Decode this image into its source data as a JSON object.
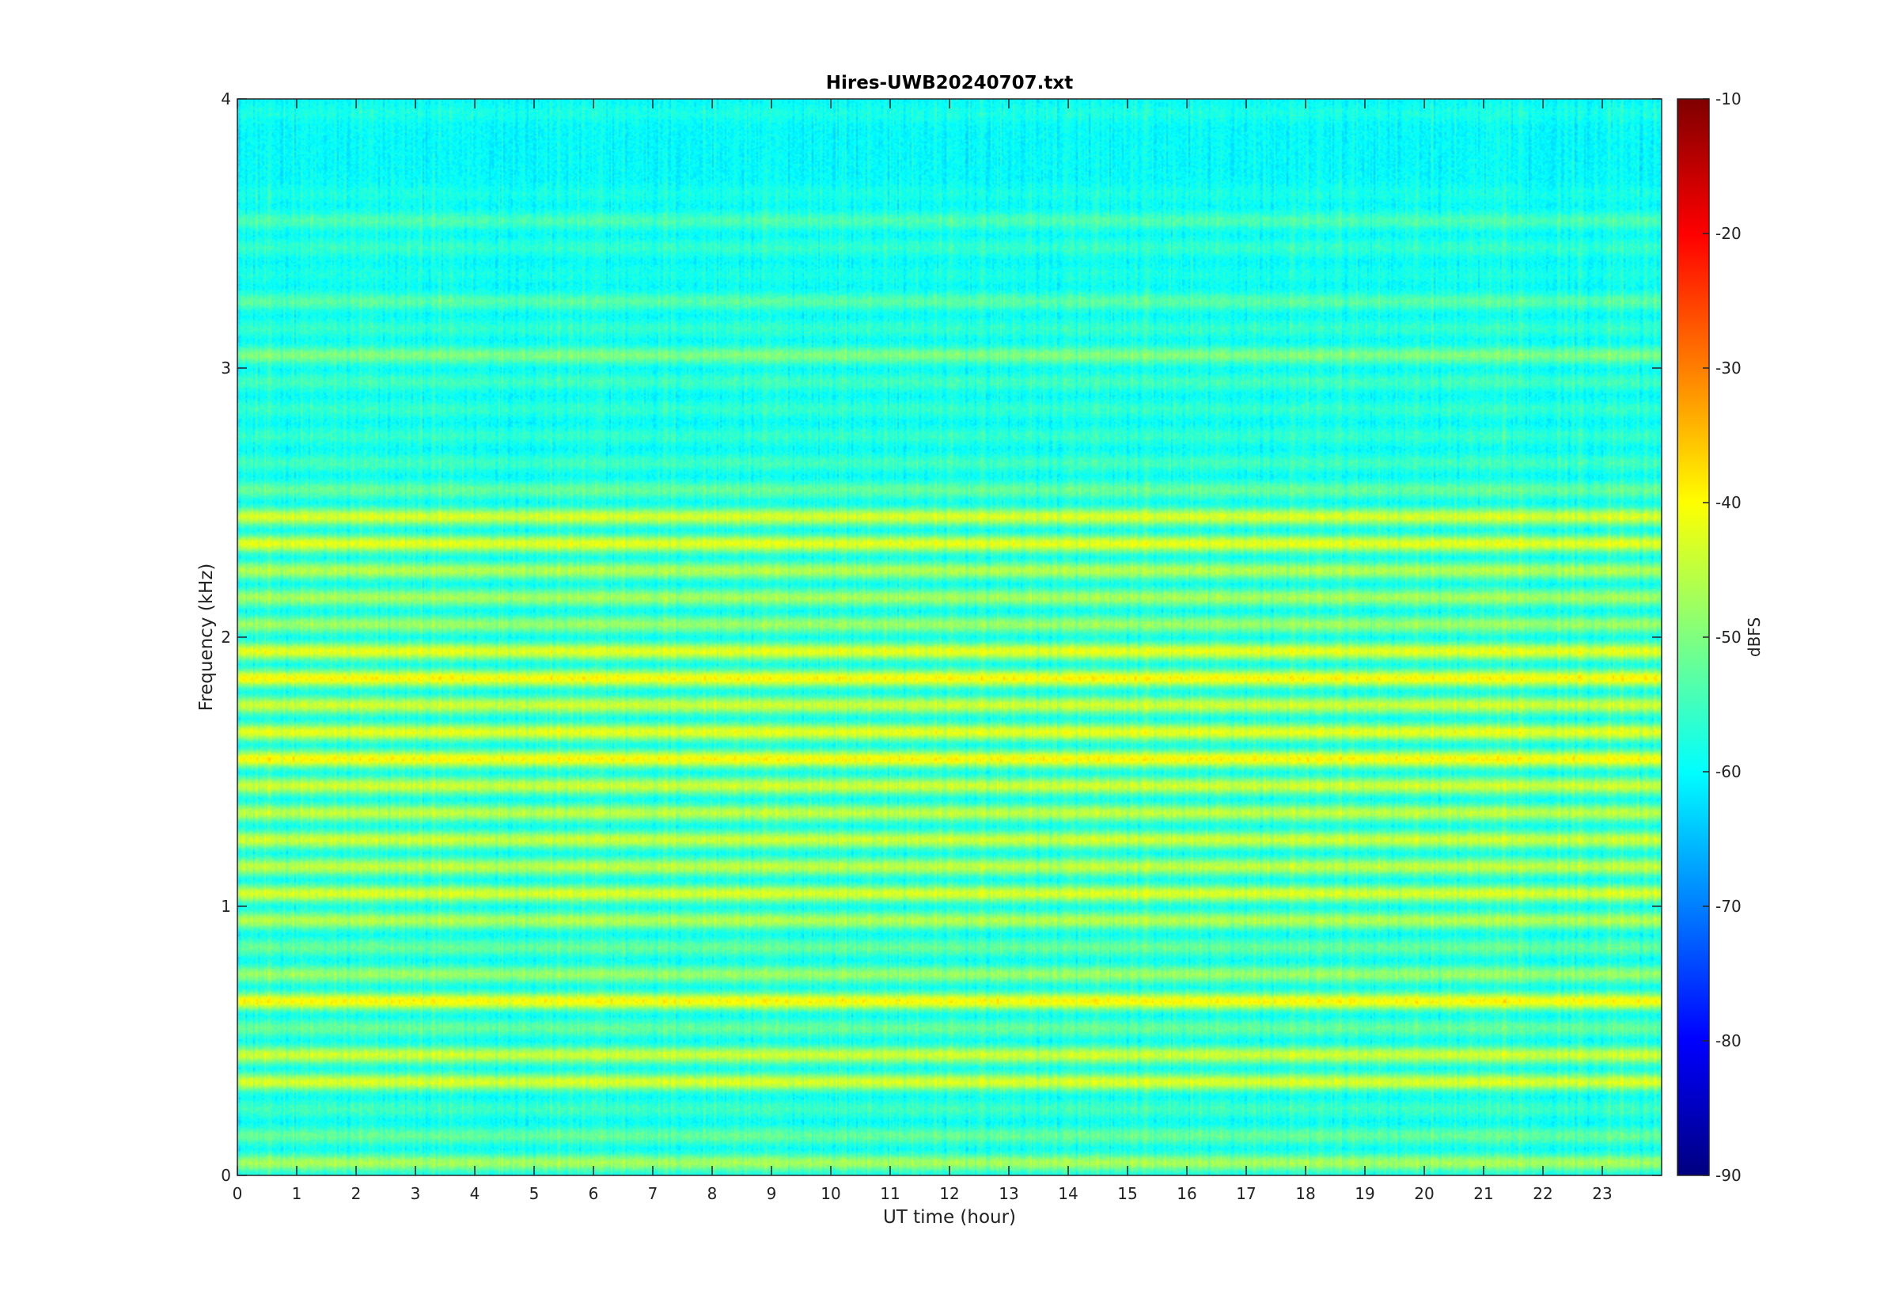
{
  "chart_data": {
    "type": "heatmap",
    "title": "Hires-UWB20240707.txt",
    "xlabel": "UT time (hour)",
    "ylabel": "Frequency (kHz)",
    "xlim": [
      0,
      24
    ],
    "ylim": [
      0,
      4
    ],
    "x_ticks": [
      "0",
      "1",
      "2",
      "3",
      "4",
      "5",
      "6",
      "7",
      "8",
      "9",
      "10",
      "11",
      "12",
      "13",
      "14",
      "15",
      "16",
      "17",
      "18",
      "19",
      "20",
      "21",
      "22",
      "23"
    ],
    "y_ticks": [
      "0",
      "1",
      "2",
      "3",
      "4"
    ],
    "colorbar": {
      "label": "dBFS",
      "range": [
        -90,
        -10
      ],
      "ticks": [
        "-10",
        "-20",
        "-30",
        "-40",
        "-50",
        "-60",
        "-70",
        "-80",
        "-90"
      ],
      "colormap": "jet"
    },
    "base_level_dBFS": -60,
    "bands": [
      {
        "f_khz": 0.05,
        "level": -47
      },
      {
        "f_khz": 0.15,
        "level": -52
      },
      {
        "f_khz": 0.25,
        "level": -55
      },
      {
        "f_khz": 0.35,
        "level": -43
      },
      {
        "f_khz": 0.45,
        "level": -44
      },
      {
        "f_khz": 0.55,
        "level": -52
      },
      {
        "f_khz": 0.65,
        "level": -40
      },
      {
        "f_khz": 0.75,
        "level": -48
      },
      {
        "f_khz": 0.85,
        "level": -52
      },
      {
        "f_khz": 0.95,
        "level": -46
      },
      {
        "f_khz": 1.05,
        "level": -43
      },
      {
        "f_khz": 1.15,
        "level": -45
      },
      {
        "f_khz": 1.25,
        "level": -44
      },
      {
        "f_khz": 1.35,
        "level": -45
      },
      {
        "f_khz": 1.45,
        "level": -44
      },
      {
        "f_khz": 1.55,
        "level": -40
      },
      {
        "f_khz": 1.65,
        "level": -42
      },
      {
        "f_khz": 1.75,
        "level": -44
      },
      {
        "f_khz": 1.85,
        "level": -40
      },
      {
        "f_khz": 1.95,
        "level": -42
      },
      {
        "f_khz": 2.05,
        "level": -48
      },
      {
        "f_khz": 2.15,
        "level": -47
      },
      {
        "f_khz": 2.25,
        "level": -46
      },
      {
        "f_khz": 2.35,
        "level": -42
      },
      {
        "f_khz": 2.45,
        "level": -43
      },
      {
        "f_khz": 2.55,
        "level": -52
      },
      {
        "f_khz": 2.65,
        "level": -55
      },
      {
        "f_khz": 2.75,
        "level": -56
      },
      {
        "f_khz": 2.85,
        "level": -56
      },
      {
        "f_khz": 2.95,
        "level": -55
      },
      {
        "f_khz": 3.05,
        "level": -50
      },
      {
        "f_khz": 3.15,
        "level": -56
      },
      {
        "f_khz": 3.25,
        "level": -53
      },
      {
        "f_khz": 3.35,
        "level": -58
      },
      {
        "f_khz": 3.45,
        "level": -56
      },
      {
        "f_khz": 3.55,
        "level": -54
      },
      {
        "f_khz": 3.65,
        "level": -58
      },
      {
        "f_khz": 3.75,
        "level": -60
      },
      {
        "f_khz": 3.85,
        "level": -61
      },
      {
        "f_khz": 3.95,
        "level": -58
      }
    ]
  }
}
